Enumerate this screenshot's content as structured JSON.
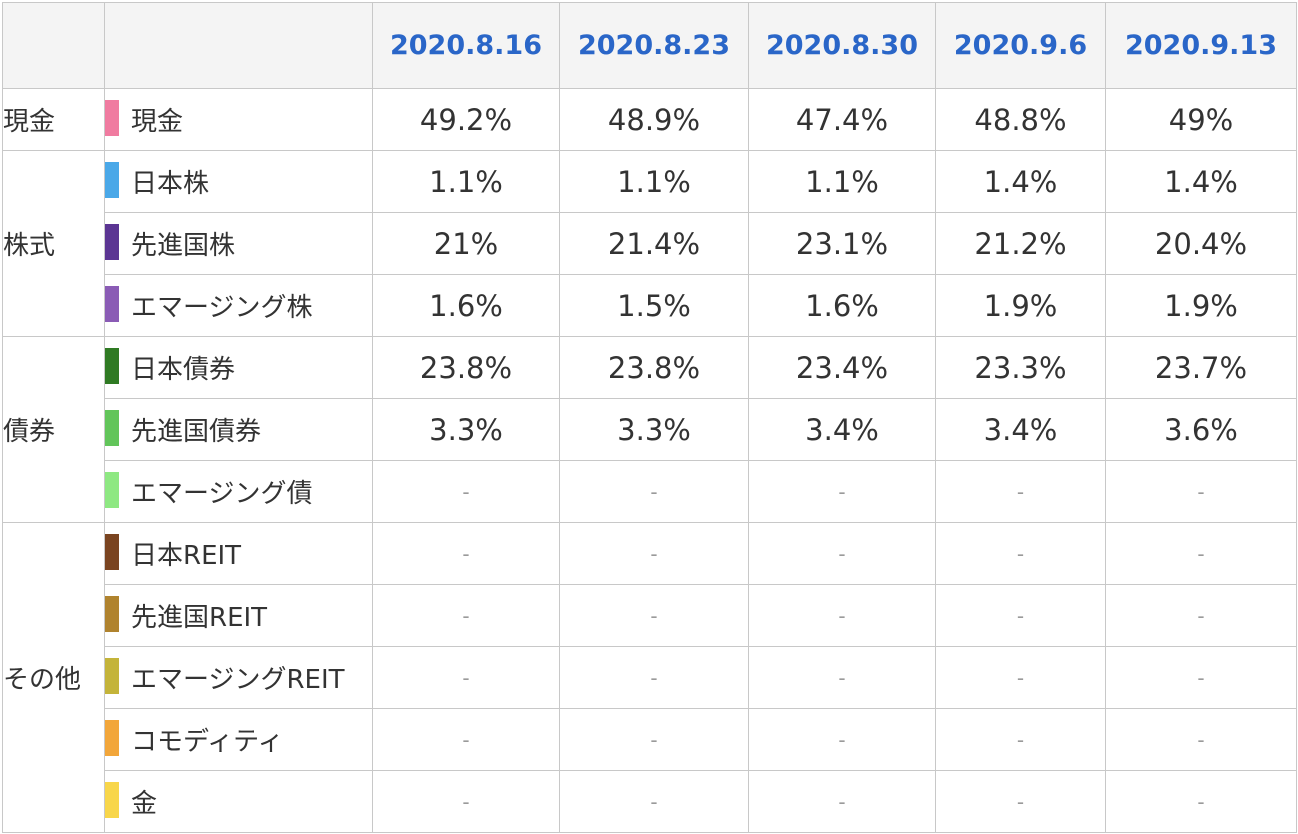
{
  "header": {
    "dates": [
      "2020.8.16",
      "2020.8.23",
      "2020.8.30",
      "2020.9.6",
      "2020.9.13"
    ]
  },
  "groups": [
    {
      "name": "現金",
      "rows": [
        {
          "label": "現金",
          "color": "#f07ba0",
          "values": [
            "49.2%",
            "48.9%",
            "47.4%",
            "48.8%",
            "49%"
          ]
        }
      ]
    },
    {
      "name": "株式",
      "rows": [
        {
          "label": "日本株",
          "color": "#4aa8e8",
          "values": [
            "1.1%",
            "1.1%",
            "1.1%",
            "1.4%",
            "1.4%"
          ]
        },
        {
          "label": "先進国株",
          "color": "#5b3593",
          "values": [
            "21%",
            "21.4%",
            "23.1%",
            "21.2%",
            "20.4%"
          ]
        },
        {
          "label": "エマージング株",
          "color": "#8a5bb5",
          "values": [
            "1.6%",
            "1.5%",
            "1.6%",
            "1.9%",
            "1.9%"
          ]
        }
      ]
    },
    {
      "name": "債券",
      "rows": [
        {
          "label": "日本債券",
          "color": "#2f7a23",
          "values": [
            "23.8%",
            "23.8%",
            "23.4%",
            "23.3%",
            "23.7%"
          ]
        },
        {
          "label": "先進国債券",
          "color": "#62c55a",
          "values": [
            "3.3%",
            "3.3%",
            "3.4%",
            "3.4%",
            "3.6%"
          ]
        },
        {
          "label": "エマージング債",
          "color": "#8ee882",
          "values": [
            "-",
            "-",
            "-",
            "-",
            "-"
          ]
        }
      ]
    },
    {
      "name": "その他",
      "rows": [
        {
          "label": "日本REIT",
          "color": "#7a4420",
          "values": [
            "-",
            "-",
            "-",
            "-",
            "-"
          ]
        },
        {
          "label": "先進国REIT",
          "color": "#b0832e",
          "values": [
            "-",
            "-",
            "-",
            "-",
            "-"
          ]
        },
        {
          "label": "エマージングREIT",
          "color": "#c4b43a",
          "values": [
            "-",
            "-",
            "-",
            "-",
            "-"
          ]
        },
        {
          "label": "コモディティ",
          "color": "#f2a63a",
          "values": [
            "-",
            "-",
            "-",
            "-",
            "-"
          ]
        },
        {
          "label": "金",
          "color": "#f8d64a",
          "values": [
            "-",
            "-",
            "-",
            "-",
            "-"
          ]
        }
      ]
    }
  ]
}
